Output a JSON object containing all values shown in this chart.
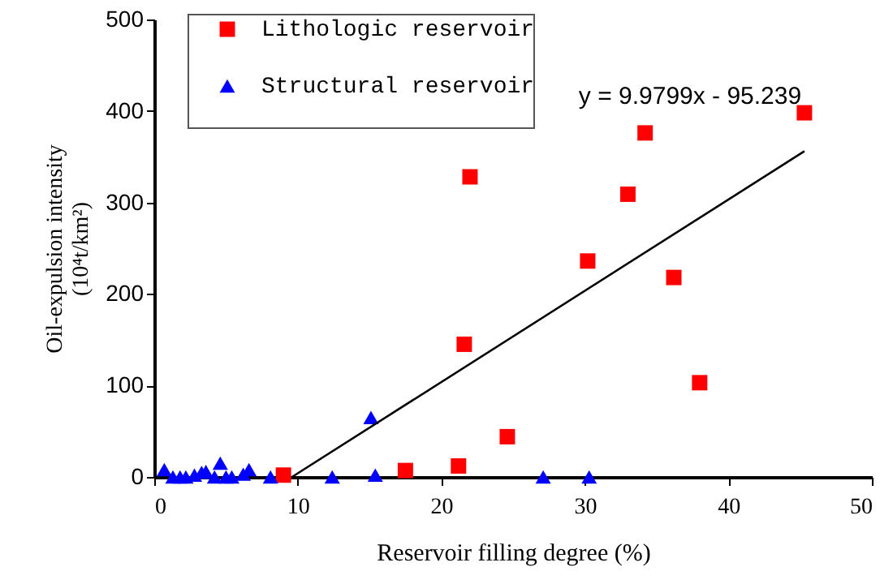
{
  "chart_data": {
    "type": "scatter",
    "xlabel": "Reservoir filling degree (%)",
    "ylabel": "Oil-expulsion intensity\n(10⁴t/km²)",
    "xlim": [
      0,
      50
    ],
    "xticks": [
      0,
      10,
      20,
      30,
      40,
      50
    ],
    "ylim": [
      0,
      500
    ],
    "yticks": [
      0,
      100,
      200,
      300,
      400,
      500
    ],
    "grid": false,
    "legend": "top left",
    "annotations": [
      "y = 9.9799x - 95.239"
    ],
    "series": [
      {
        "name": "Lithologic reservoir",
        "color": "#ff0000",
        "marker": "square",
        "x": [
          9,
          17.5,
          21.2,
          21.6,
          22,
          24.6,
          30.2,
          33,
          34.2,
          36.2,
          38,
          45.3
        ],
        "values": [
          2,
          7,
          12,
          145,
          328,
          44,
          236,
          309,
          376,
          218,
          103,
          398
        ]
      },
      {
        "name": "Structural reservoir",
        "color": "#0000ff",
        "marker": "triangle",
        "x": [
          0.7,
          1.3,
          1.8,
          2.2,
          2.8,
          3.3,
          3.6,
          4.2,
          4.6,
          5,
          5.4,
          6.2,
          6.6,
          8.1,
          12.4,
          15.1,
          15.4,
          27.1,
          30.3
        ],
        "values": [
          8,
          0,
          0,
          0,
          2,
          5,
          6,
          0,
          15,
          0,
          0,
          3,
          8,
          0,
          0,
          65,
          2,
          0,
          0
        ]
      },
      {
        "type": "line",
        "color": "#000000",
        "x": [
          9.6,
          45.3
        ],
        "values": [
          0,
          356
        ]
      }
    ]
  }
}
